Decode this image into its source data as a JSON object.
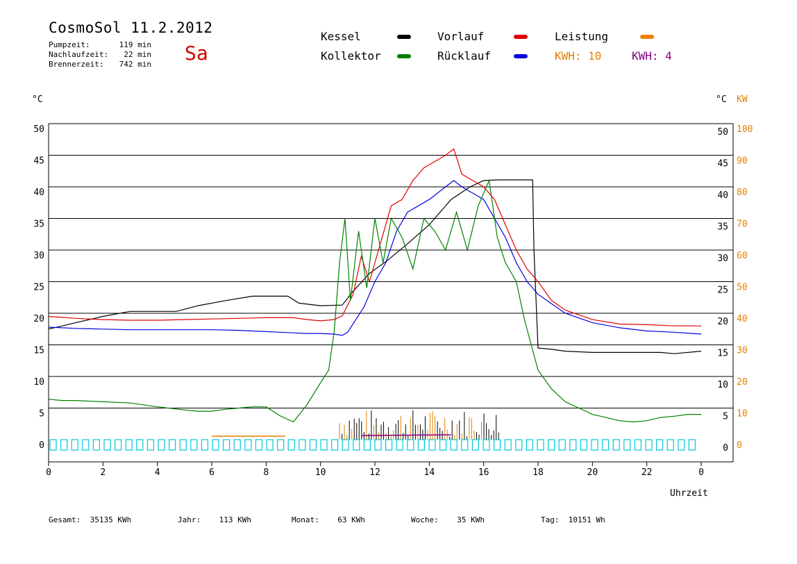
{
  "header": {
    "title": "CosmoSol 11.2.2012",
    "day": "Sa",
    "info": [
      {
        "label": "Pumpzeit:",
        "value": "119 min"
      },
      {
        "label": "Nachlaufzeit:",
        "value": "22 min"
      },
      {
        "label": "Brennerzeit:",
        "value": "742 min"
      }
    ]
  },
  "legend": {
    "kessel": {
      "label": "Kessel",
      "color": "#000000"
    },
    "kollektor": {
      "label": "Kollektor",
      "color": "#008000"
    },
    "vorlauf": {
      "label": "Vorlauf",
      "color": "#e00000"
    },
    "ruecklauf": {
      "label": "Rücklauf",
      "color": "#0000e0"
    },
    "leistung": {
      "label": "Leistung",
      "color": "#f08000"
    },
    "kwh1": "KWH: 10",
    "kwh2": "KWH: 4",
    "kwh1_color": "#e08000",
    "kwh2_color": "#800080"
  },
  "footer": [
    {
      "label": "Gesamt:",
      "value": "35135 KWh"
    },
    {
      "label": "Jahr:",
      "value": "113 KWh"
    },
    {
      "label": "Monat:",
      "value": "63 KWh"
    },
    {
      "label": "Woche:",
      "value": "35 KWh"
    },
    {
      "label": "Tag:",
      "value": "10151 Wh"
    }
  ],
  "chart_data": {
    "type": "line",
    "ylabel_left": "°C",
    "ylabel_right": "°C",
    "ylabel_right2": "KW",
    "xlabel": "Uhrzeit",
    "xlim": [
      0,
      24
    ],
    "ylim": [
      0,
      50
    ],
    "y2lim": [
      0,
      100
    ],
    "grid": true,
    "x_ticks": [
      "0",
      "2",
      "4",
      "6",
      "8",
      "10",
      "12",
      "14",
      "16",
      "18",
      "20",
      "22",
      "0"
    ],
    "y_ticks": [
      0,
      5,
      10,
      15,
      20,
      25,
      30,
      35,
      40,
      45,
      50
    ],
    "y2_ticks": [
      0,
      10,
      20,
      30,
      40,
      50,
      60,
      70,
      80,
      90,
      100
    ],
    "series": [
      {
        "name": "Kessel",
        "color": "#000000",
        "x": [
          0,
          1,
          2,
          3,
          4,
          4.7,
          5.5,
          6.5,
          7.5,
          8.2,
          8.8,
          9.2,
          10,
          10.8,
          11.2,
          11.8,
          12.5,
          13.2,
          14,
          14.8,
          15.5,
          16,
          16.5,
          17,
          17.5,
          17.8,
          17.85,
          18,
          18.5,
          19,
          20,
          21,
          22,
          22.5,
          23,
          24
        ],
        "y": [
          17.5,
          18.5,
          19.5,
          20.3,
          20.3,
          20.3,
          21.2,
          22.0,
          22.7,
          22.7,
          22.7,
          21.6,
          21.2,
          21.3,
          23.5,
          26.3,
          28.5,
          31,
          34,
          38,
          40,
          41,
          41.1,
          41.1,
          41.1,
          41.1,
          30,
          14.5,
          14.3,
          14,
          13.8,
          13.8,
          13.8,
          13.8,
          13.6,
          14
        ]
      },
      {
        "name": "Vorlauf",
        "color": "#e00000",
        "x": [
          0,
          1,
          2,
          3,
          4,
          5,
          6,
          7,
          8,
          9,
          9.5,
          10,
          10.5,
          10.8,
          11.2,
          11.5,
          11.8,
          12.2,
          12.6,
          13,
          13.4,
          13.8,
          14.2,
          14.6,
          14.9,
          15.2,
          15.6,
          16,
          16.4,
          16.8,
          17.2,
          17.6,
          18,
          18.5,
          19,
          20,
          21,
          22,
          23,
          24
        ],
        "y": [
          19.5,
          19.2,
          19,
          18.9,
          18.9,
          19,
          19.1,
          19.2,
          19.3,
          19.3,
          19,
          18.8,
          19,
          19.6,
          23,
          29,
          25,
          31,
          37,
          38,
          41,
          43,
          44,
          45,
          46,
          42,
          41,
          40,
          38,
          34,
          30,
          27,
          25,
          22,
          20.5,
          19,
          18.3,
          18.2,
          18,
          18
        ]
      },
      {
        "name": "Rücklauf",
        "color": "#0000e0",
        "x": [
          0,
          1,
          2,
          3,
          4,
          5,
          6,
          7,
          8,
          8.5,
          9,
          9.5,
          10,
          10.5,
          10.8,
          11,
          11.3,
          11.6,
          12,
          12.4,
          12.8,
          13.2,
          13.6,
          14,
          14.3,
          14.6,
          14.9,
          15.2,
          15.6,
          16,
          16.4,
          16.8,
          17.2,
          17.6,
          18,
          18.5,
          19,
          20,
          21,
          22,
          23,
          24
        ],
        "y": [
          17.8,
          17.6,
          17.5,
          17.4,
          17.4,
          17.4,
          17.4,
          17.3,
          17.1,
          17,
          16.9,
          16.8,
          16.8,
          16.7,
          16.5,
          17,
          19,
          21,
          25,
          28,
          33,
          36,
          37,
          38,
          39,
          40,
          41,
          40,
          39,
          38,
          35,
          32,
          28,
          25,
          23,
          21.5,
          20,
          18.5,
          17.7,
          17.2,
          17,
          16.7
        ]
      },
      {
        "name": "Kollektor",
        "color": "#008000",
        "x": [
          0,
          0.5,
          1,
          2,
          3,
          4,
          5,
          5.5,
          6,
          6.5,
          7,
          7.5,
          8,
          8.5,
          9,
          9.5,
          10,
          10.3,
          10.5,
          10.7,
          10.9,
          11.1,
          11.4,
          11.7,
          12,
          12.3,
          12.6,
          13,
          13.4,
          13.8,
          14.2,
          14.6,
          15,
          15.4,
          15.8,
          16.2,
          16.5,
          16.8,
          17.2,
          17.5,
          18,
          18.5,
          19,
          19.5,
          20,
          20.5,
          21,
          21.5,
          22,
          22.5,
          23,
          23.5,
          24
        ],
        "y": [
          6.4,
          6.2,
          6.2,
          6.0,
          5.8,
          5.2,
          4.7,
          4.5,
          4.5,
          4.8,
          5.0,
          5.2,
          5.2,
          3.8,
          2.8,
          5.5,
          9,
          11,
          17,
          28,
          35,
          22,
          33,
          24,
          35,
          28,
          35,
          32,
          27,
          35,
          33,
          30,
          36,
          30,
          37,
          41,
          32,
          28,
          25,
          19,
          11,
          8,
          6,
          5,
          4,
          3.5,
          3,
          2.8,
          3.0,
          3.5,
          3.7,
          4.0,
          4.0
        ]
      }
    ]
  }
}
